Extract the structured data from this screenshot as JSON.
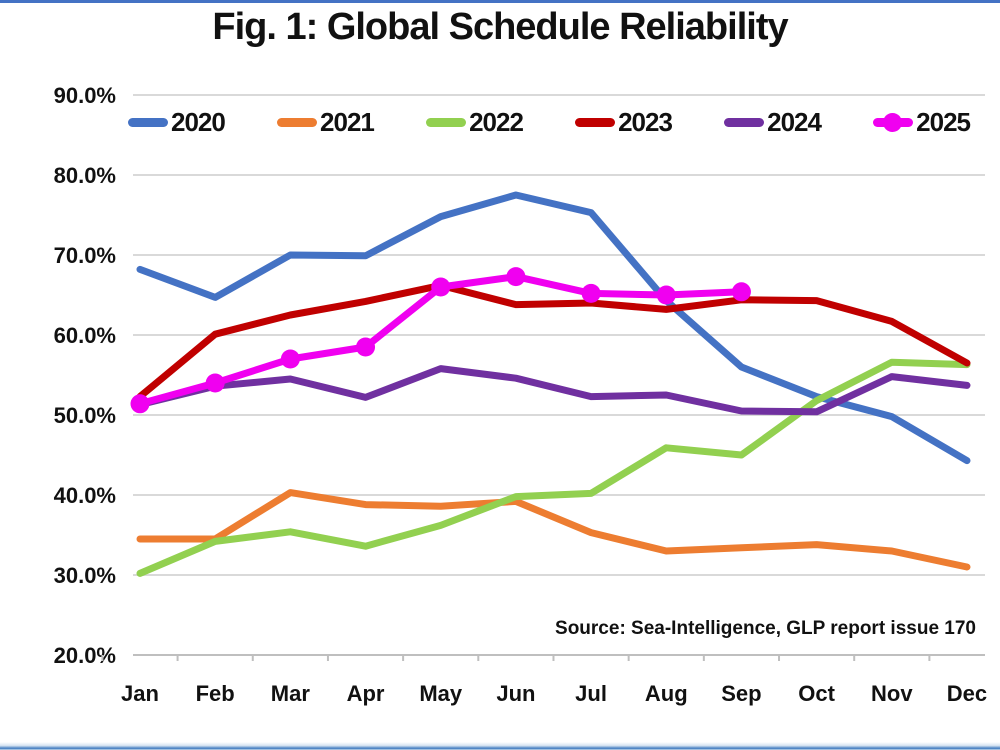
{
  "page": {
    "top_bar_color": "#4472C4",
    "bottom_bar_gradient_top": "#d6e4f2",
    "bottom_bar_line_color": "#3c78be"
  },
  "chart_data": {
    "type": "line",
    "title": "Fig. 1: Global Schedule Reliability",
    "source_note": "Source: Sea-Intelligence, GLP report issue 170",
    "categories": [
      "Jan",
      "Feb",
      "Mar",
      "Apr",
      "May",
      "Jun",
      "Jul",
      "Aug",
      "Sep",
      "Oct",
      "Nov",
      "Dec"
    ],
    "y_axis": {
      "min": 20,
      "max": 90,
      "step": 10,
      "tick_labels": [
        "90.0%",
        "80.0%",
        "70.0%",
        "60.0%",
        "50.0%",
        "40.0%",
        "30.0%",
        "20.0%"
      ],
      "unit": "%"
    },
    "grid": true,
    "gridline_color": "#D9D9D9",
    "axis_line_color": "#BFBFBF",
    "legend_position": "top",
    "series": [
      {
        "name": "2020",
        "color": "#4472C4",
        "marker": "none",
        "values": [
          68.2,
          64.7,
          70.0,
          69.9,
          74.8,
          77.5,
          75.3,
          64.3,
          56.0,
          52.3,
          49.8,
          44.3
        ]
      },
      {
        "name": "2021",
        "color": "#ED7D31",
        "marker": "none",
        "values": [
          34.5,
          34.5,
          40.3,
          38.8,
          38.6,
          39.2,
          35.3,
          33.0,
          33.4,
          33.8,
          33.0,
          31.0
        ]
      },
      {
        "name": "2022",
        "color": "#92D050",
        "marker": "none",
        "values": [
          30.2,
          34.2,
          35.4,
          33.6,
          36.2,
          39.8,
          40.2,
          45.9,
          45.0,
          51.8,
          56.6,
          56.3
        ]
      },
      {
        "name": "2023",
        "color": "#C00000",
        "marker": "none",
        "values": [
          52.3,
          60.1,
          62.5,
          64.2,
          66.2,
          63.8,
          64.0,
          63.2,
          64.4,
          64.3,
          61.7,
          56.5
        ]
      },
      {
        "name": "2024",
        "color": "#7030A0",
        "marker": "none",
        "values": [
          51.3,
          53.6,
          54.5,
          52.2,
          55.8,
          54.6,
          52.3,
          52.5,
          50.5,
          50.4,
          54.8,
          53.7
        ]
      },
      {
        "name": "2025",
        "color": "#F000F0",
        "marker": "circle",
        "values": [
          51.4,
          54.0,
          57.0,
          58.5,
          66.0,
          67.3,
          65.2,
          65.0,
          65.4,
          null,
          null,
          null
        ]
      }
    ]
  }
}
